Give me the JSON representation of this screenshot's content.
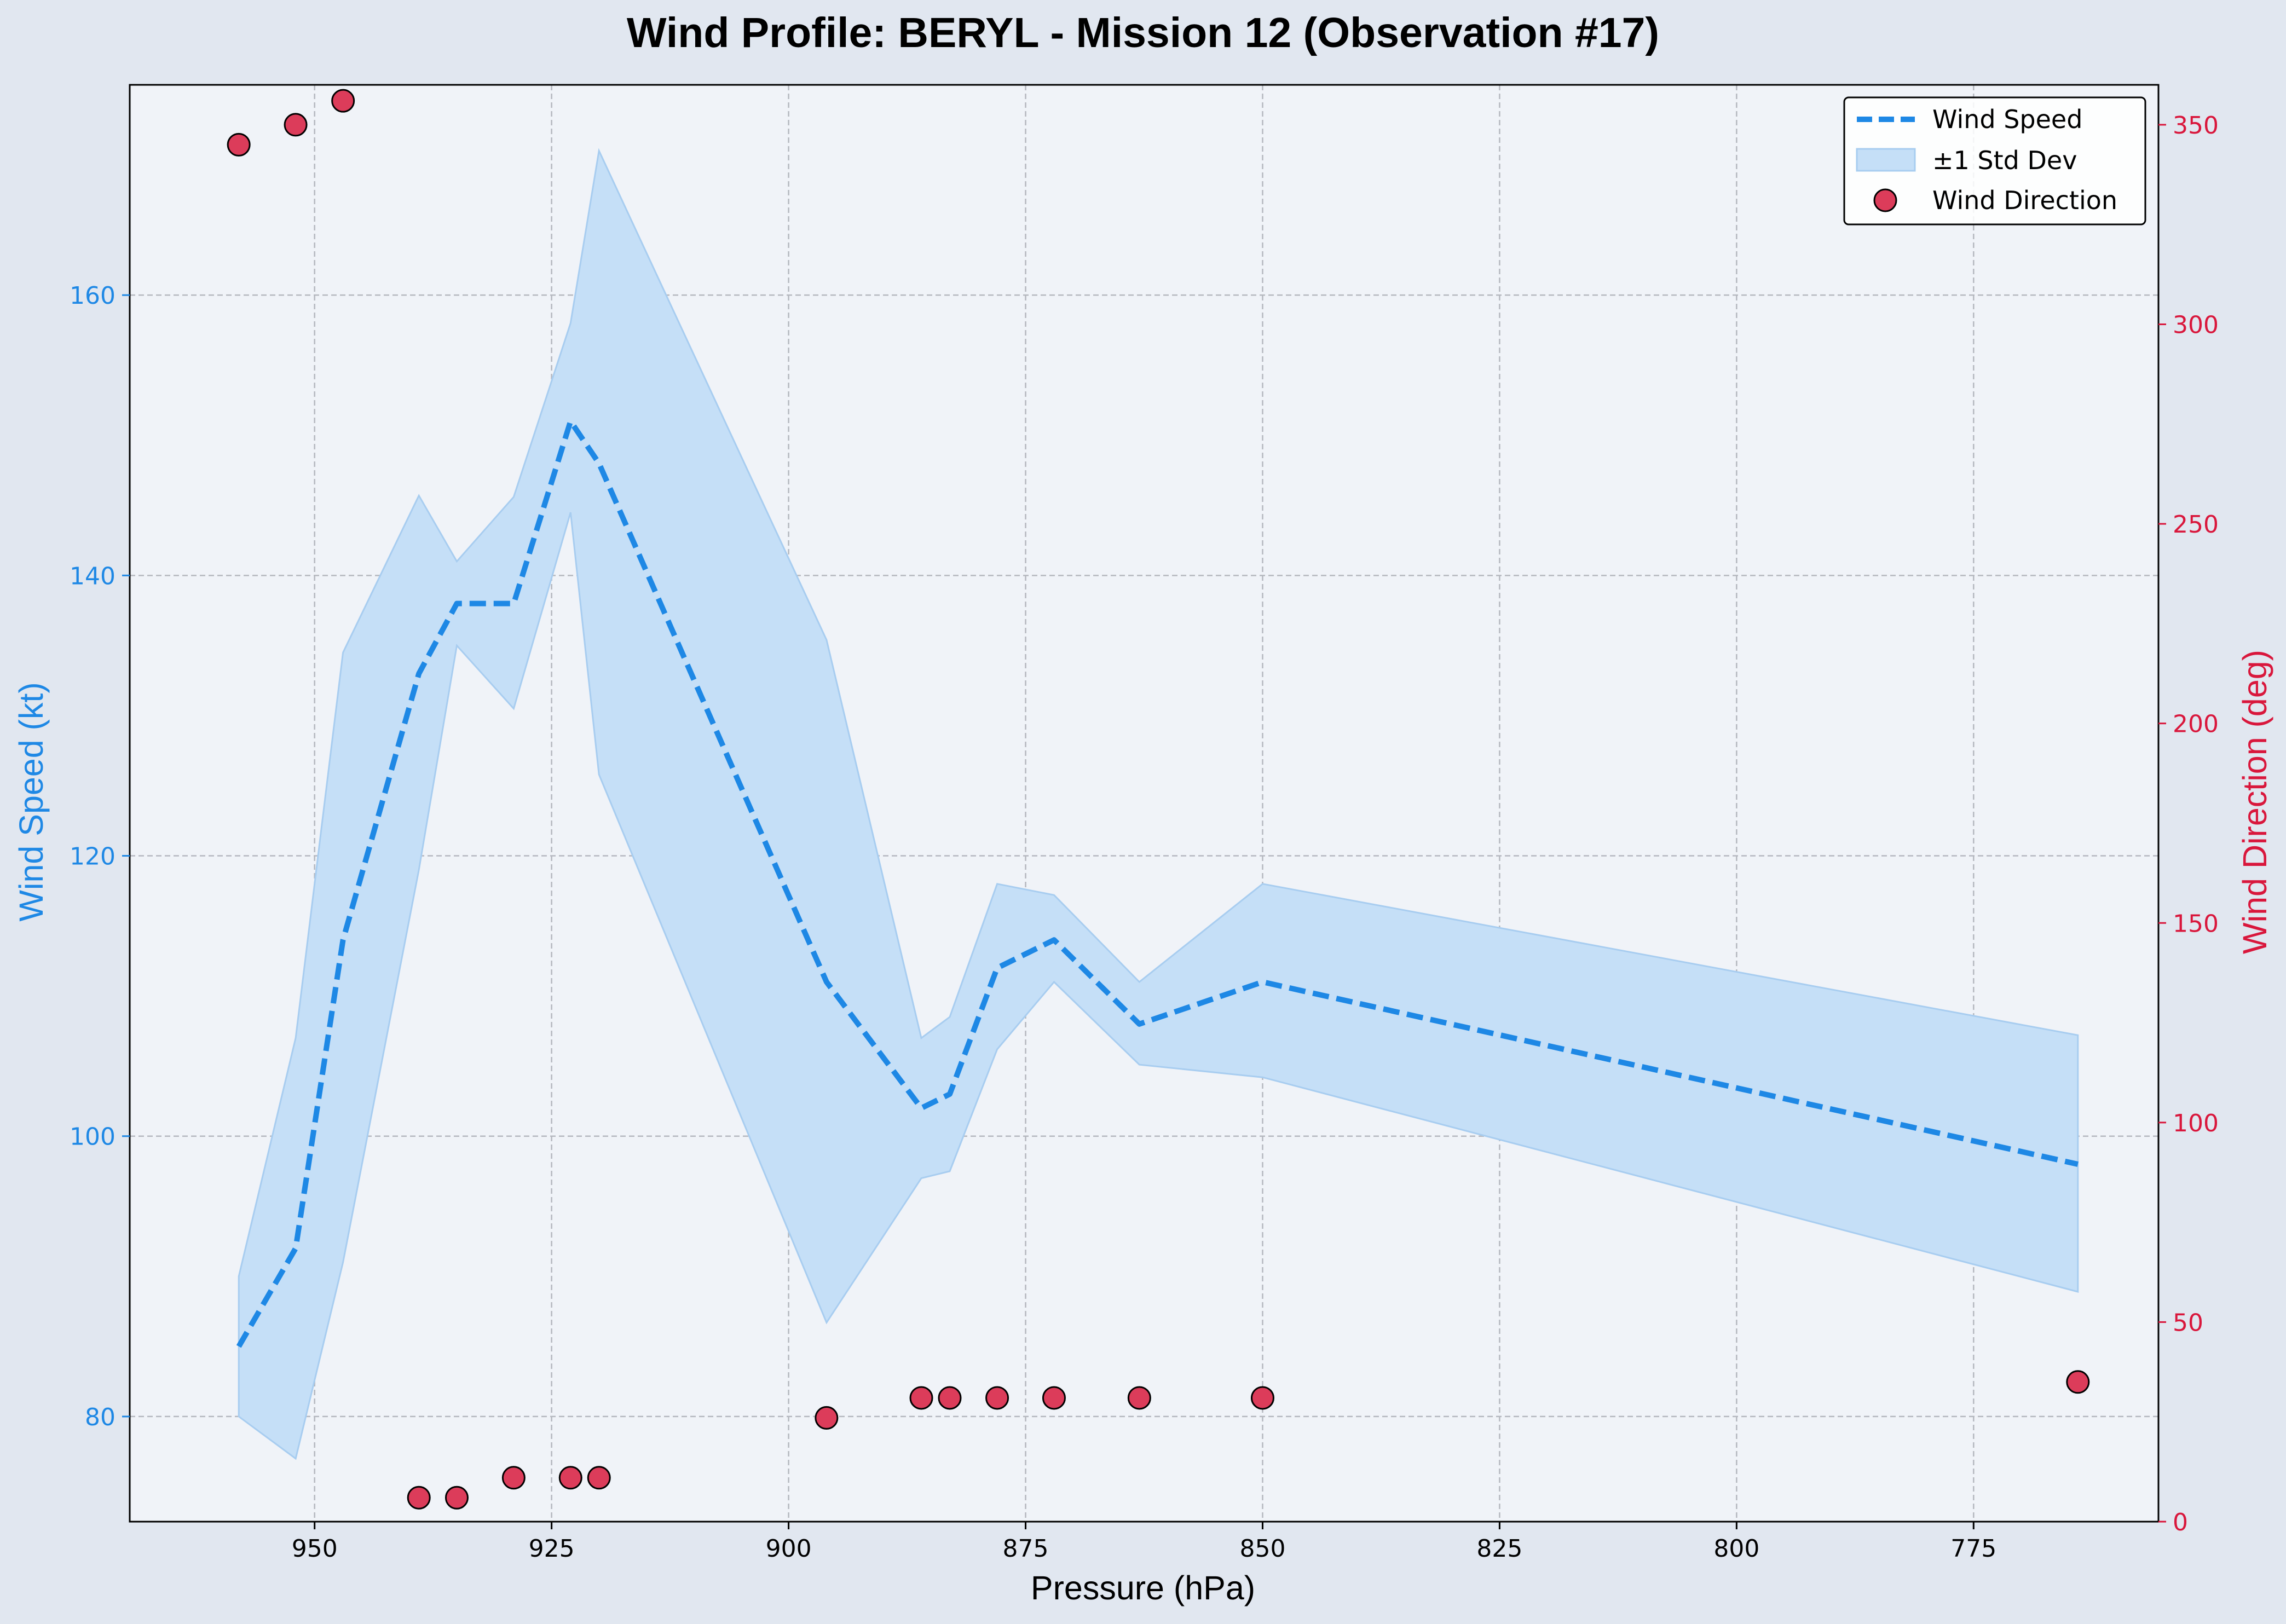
{
  "chart_data": {
    "type": "line",
    "title": "Wind Profile: BERYL - Mission 12 (Observation #17)",
    "xlabel": "Pressure (hPa)",
    "ylabel": "Wind Speed (kt)",
    "ylabel_right": "Wind Direction (deg)",
    "x_inverted": true,
    "xlim": [
      969.5,
      755.5
    ],
    "ylim": [
      72.5,
      175
    ],
    "ylim_right": [
      0,
      360
    ],
    "x_ticks": [
      950,
      925,
      900,
      875,
      850,
      825,
      800,
      775
    ],
    "y_ticks": [
      80,
      100,
      120,
      140,
      160
    ],
    "y_ticks_right": [
      0,
      50,
      100,
      150,
      200,
      250,
      300,
      350
    ],
    "grid": true,
    "legend_position": "top-right",
    "x": [
      958,
      952,
      947,
      939,
      935,
      929,
      923,
      920,
      896,
      886,
      883,
      878,
      872,
      863,
      850,
      764
    ],
    "series": [
      {
        "name": "Wind Speed",
        "axis": "left",
        "style": "dashed-line",
        "values": [
          85,
          92,
          114,
          133,
          138,
          138,
          151,
          148,
          111,
          102,
          103,
          112,
          114,
          108,
          111,
          98
        ]
      },
      {
        "name": "±1 Std Dev",
        "axis": "left",
        "style": "band",
        "lower": [
          80,
          77,
          91,
          119,
          135,
          130.5,
          144.5,
          125.8,
          86.7,
          97,
          97.5,
          106.2,
          111,
          105.1,
          104.2,
          88.9
        ],
        "upper": [
          90,
          107,
          134.5,
          145.7,
          141,
          145.6,
          158,
          170.3,
          135.4,
          107,
          108.5,
          118,
          117.2,
          111,
          118,
          107.2
        ]
      },
      {
        "name": "Wind Direction",
        "axis": "right",
        "style": "scatter",
        "values": [
          345,
          350,
          356,
          6,
          6,
          11,
          11,
          11,
          26,
          31,
          31,
          31,
          31,
          31,
          31,
          35
        ]
      }
    ],
    "colors": {
      "speed": "#1e88e5",
      "band_fill": "#c5dff7",
      "band_edge": "#a8cdf0",
      "direction": "#dc3c5a",
      "direction_axis": "#d9173c",
      "grid": "#b5b8bf",
      "plot_bg": "#f0f3f8",
      "figure_bg": "#e1e7f0"
    }
  }
}
